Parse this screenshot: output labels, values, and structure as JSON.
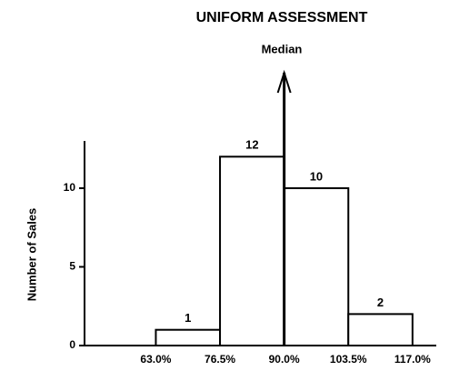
{
  "chart_data": {
    "type": "histogram",
    "title": "UNIFORM ASSESSMENT",
    "y_label": "Number of Sales",
    "median": {
      "label": "Median",
      "value": 90
    },
    "bins": [
      63,
      76.5,
      90,
      103.5,
      117
    ],
    "values": [
      1,
      12,
      10,
      2
    ],
    "color": "#ffffff",
    "xlim": [
      48,
      122
    ],
    "ylim": [
      0,
      13
    ],
    "xticks": [
      {
        "value": 63,
        "label": "63.0%"
      },
      {
        "value": 76.5,
        "label": "76.5%"
      },
      {
        "value": 90,
        "label": "90.0%"
      },
      {
        "value": 103.5,
        "label": "103.5%"
      },
      {
        "value": 117,
        "label": "117.0%"
      }
    ],
    "yticks": [
      0,
      5,
      10
    ],
    "grid": false
  }
}
